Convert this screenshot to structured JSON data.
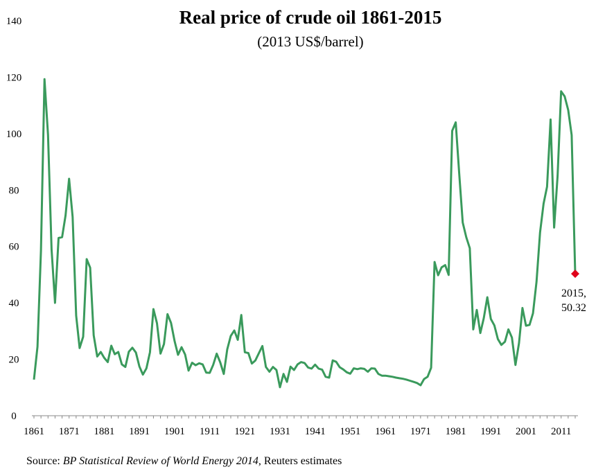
{
  "chart_data": {
    "type": "line",
    "title": "Real price of  crude oil 1861-2015",
    "subtitle": "(2013 US$/barrel)",
    "xlabel": "",
    "ylabel": "",
    "ylim": [
      0,
      140
    ],
    "xlim": [
      1861,
      2015
    ],
    "yticks": [
      0,
      20,
      40,
      60,
      80,
      100,
      120,
      140
    ],
    "xticks": [
      1861,
      1871,
      1881,
      1891,
      1901,
      1911,
      1921,
      1931,
      1941,
      1951,
      1961,
      1971,
      1981,
      1991,
      2001,
      2011
    ],
    "grid": false,
    "line_color": "#3a9a5c",
    "highlight_color": "#e0001b",
    "series": [
      {
        "x": [
          1861,
          1862,
          1863,
          1864,
          1865,
          1866,
          1867,
          1868,
          1869,
          1870,
          1871,
          1872,
          1873,
          1874,
          1875,
          1876,
          1877,
          1878,
          1879,
          1880,
          1881,
          1882,
          1883,
          1884,
          1885,
          1886,
          1887,
          1888,
          1889,
          1890,
          1891,
          1892,
          1893,
          1894,
          1895,
          1896,
          1897,
          1898,
          1899,
          1900,
          1901,
          1902,
          1903,
          1904,
          1905,
          1906,
          1907,
          1908,
          1909,
          1910,
          1911,
          1912,
          1913,
          1914,
          1915,
          1916,
          1917,
          1918,
          1919,
          1920,
          1921,
          1922,
          1923,
          1924,
          1925,
          1926,
          1927,
          1928,
          1929,
          1930,
          1931,
          1932,
          1933,
          1934,
          1935,
          1936,
          1937,
          1938,
          1939,
          1940,
          1941,
          1942,
          1943,
          1944,
          1945,
          1946,
          1947,
          1948,
          1949,
          1950,
          1951,
          1952,
          1953,
          1954,
          1955,
          1956,
          1957,
          1958,
          1959,
          1960,
          1961,
          1962,
          1963,
          1964,
          1965,
          1966,
          1967,
          1968,
          1969,
          1970,
          1971,
          1972,
          1973,
          1974,
          1975,
          1976,
          1977,
          1978,
          1979,
          1980,
          1981,
          1982,
          1983,
          1984,
          1985,
          1986,
          1987,
          1988,
          1989,
          1990,
          1991,
          1992,
          1993,
          1994,
          1995,
          1996,
          1997,
          1998,
          1999,
          2000,
          2001,
          2002,
          2003,
          2004,
          2005,
          2006,
          2007,
          2008,
          2009,
          2010,
          2011,
          2012,
          2013,
          2014,
          2015
        ],
        "values": [
          12.8,
          24.5,
          58.5,
          119.3,
          99.5,
          59,
          40,
          63,
          63.3,
          71,
          84,
          70.5,
          35.5,
          24,
          28,
          55.5,
          52.5,
          28.5,
          21,
          22.6,
          20.5,
          19,
          24.8,
          21.8,
          22.6,
          18.2,
          17.3,
          22.7,
          24.1,
          22.4,
          17.5,
          14.6,
          16.8,
          22.5,
          37.8,
          32.8,
          22,
          25.4,
          36,
          32.9,
          26.5,
          21.6,
          24.3,
          21.7,
          16,
          18.8,
          17.9,
          18.6,
          18.2,
          15.3,
          15.2,
          18,
          22,
          18.9,
          14.8,
          23.5,
          28.3,
          30.2,
          26.9,
          35.7,
          22.5,
          22.2,
          18.5,
          19.6,
          22.2,
          24.7,
          17.3,
          15.6,
          17.3,
          16.2,
          10.1,
          14.8,
          12,
          17.4,
          16.2,
          18.2,
          19,
          18.7,
          17.1,
          16.7,
          18.1,
          16.7,
          16.3,
          13.8,
          13.5,
          19.6,
          19.1,
          17.2,
          16.4,
          15.4,
          14.9,
          16.8,
          16.5,
          16.8,
          16.6,
          15.6,
          16.8,
          16.7,
          14.8,
          14.2,
          14.2,
          14,
          13.8,
          13.5,
          13.3,
          13.1,
          12.8,
          12.4,
          12,
          11.6,
          10.8,
          13,
          13.8,
          17,
          54.5,
          49.8,
          52.6,
          53.4,
          49.9,
          101,
          104,
          86,
          68.5,
          63.3,
          59.4,
          30.6,
          37.5,
          29.3,
          34.6,
          42,
          34.3,
          32,
          27.2,
          25.1,
          26.2,
          30.6,
          27.7,
          18,
          25.7,
          38.2,
          31.9,
          32.2,
          36.3,
          47.5,
          65,
          75.2,
          81.2,
          105,
          66.7,
          85,
          115,
          113.2,
          108.4,
          99.5,
          50.32
        ]
      }
    ],
    "annotations": [
      {
        "x": 2015,
        "y": 50.32,
        "text_line1": "2015,",
        "text_line2": "50.32"
      }
    ],
    "source_prefix": "Source: ",
    "source_italic": "BP Statistical Review of World Energy 2014",
    "source_suffix": ", Reuters estimates"
  }
}
